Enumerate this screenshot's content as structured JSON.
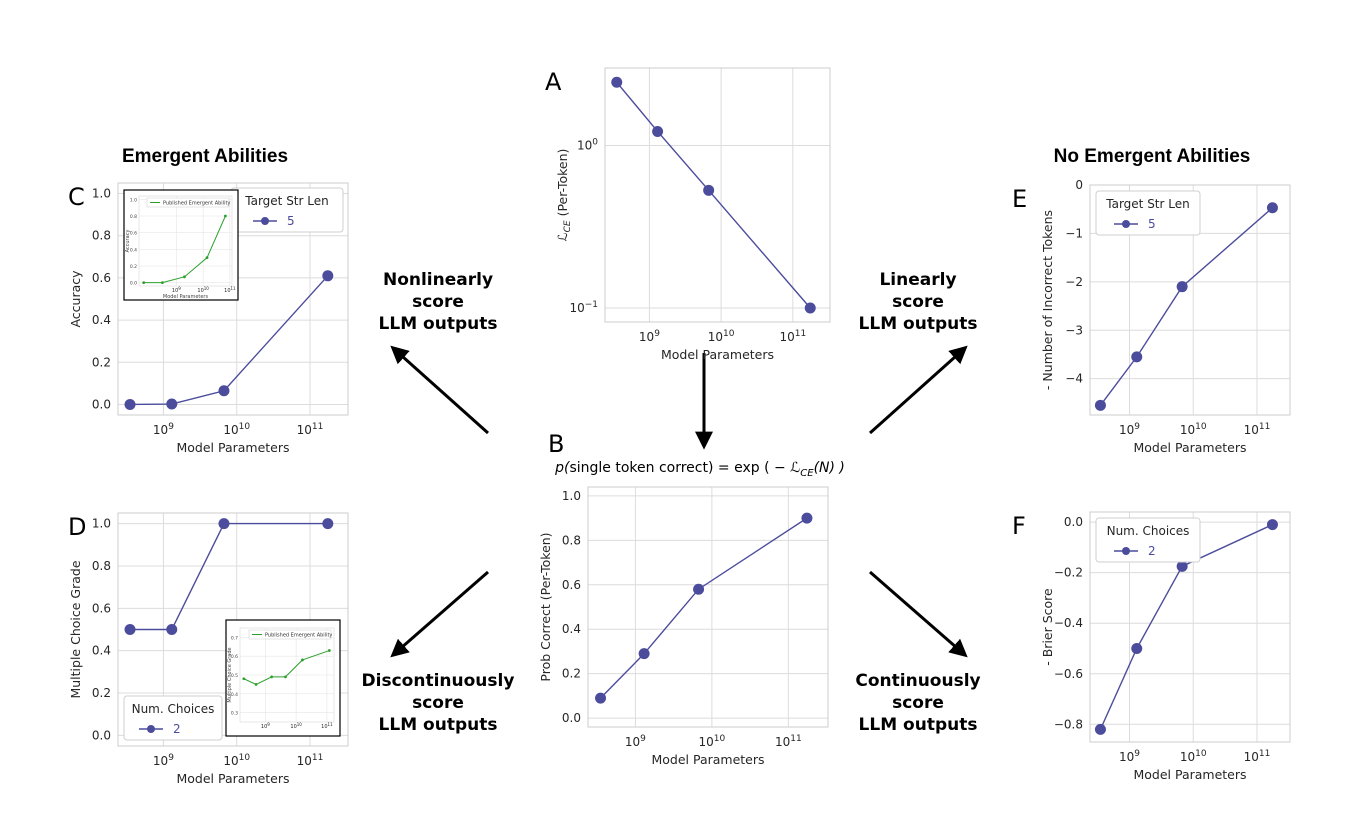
{
  "headings": {
    "left": "Emergent Abilities",
    "right": "No Emergent Abilities"
  },
  "arrows": {
    "nonlinear": [
      "Nonlinearly",
      "score",
      "LLM outputs"
    ],
    "discontinuous": [
      "Discontinuously",
      "score",
      "LLM outputs"
    ],
    "linear": [
      "Linearly",
      "score",
      "LLM outputs"
    ],
    "continuous": [
      "Continuously",
      "score",
      "LLM outputs"
    ]
  },
  "formula": {
    "prefix": "p(",
    "arg": "single token correct",
    "eq": ") = exp ( − ",
    "loss": "ℒ",
    "loss_sub": "CE",
    "suffix": "(N) )"
  },
  "colors": {
    "series": "#4c4c9c",
    "inset": "#2ca02c",
    "grid": "#dcdcdc",
    "frame": "#cccccc"
  },
  "chart_data": [
    {
      "id": "A",
      "type": "line",
      "letter": "A",
      "xlabel": "Model Parameters",
      "ylabel_main": "ℒ",
      "ylabel_sub": "CE",
      "ylabel_tail": " (Per-Token)",
      "x_log": true,
      "y_log": true,
      "xlim": [
        240000000.0,
        330000000000.0
      ],
      "ylim": [
        0.082,
        3.0
      ],
      "x": [
        350000000.0,
        1300000000.0,
        6700000000.0,
        175000000000.0
      ],
      "values": [
        2.45,
        1.22,
        0.53,
        0.1
      ],
      "x_ticks": [
        1000000000.0,
        10000000000.0,
        100000000000.0
      ],
      "x_tick_labels": [
        {
          "base": "10",
          "exp": "9"
        },
        {
          "base": "10",
          "exp": "10"
        },
        {
          "base": "10",
          "exp": "11"
        }
      ],
      "y_ticks": [
        0.1,
        1
      ],
      "y_tick_labels": [
        {
          "base": "10",
          "exp": "−1"
        },
        {
          "base": "10",
          "exp": "0"
        }
      ]
    },
    {
      "id": "B",
      "type": "line",
      "letter": "B",
      "xlabel": "Model Parameters",
      "ylabel": "Prob Correct (Per-Token)",
      "x_log": true,
      "xlim": [
        240000000.0,
        330000000000.0
      ],
      "ylim": [
        -0.04,
        1.04
      ],
      "x": [
        350000000.0,
        1300000000.0,
        6700000000.0,
        175000000000.0
      ],
      "values": [
        0.09,
        0.29,
        0.58,
        0.9
      ],
      "x_ticks": [
        1000000000.0,
        10000000000.0,
        100000000000.0
      ],
      "x_tick_labels": [
        {
          "base": "10",
          "exp": "9"
        },
        {
          "base": "10",
          "exp": "10"
        },
        {
          "base": "10",
          "exp": "11"
        }
      ],
      "y_ticks": [
        0,
        0.2,
        0.4,
        0.6,
        0.8,
        1.0
      ],
      "y_tick_labels": [
        "0.0",
        "0.2",
        "0.4",
        "0.6",
        "0.8",
        "1.0"
      ]
    },
    {
      "id": "C",
      "type": "line",
      "letter": "C",
      "xlabel": "Model Parameters",
      "ylabel": "Accuracy",
      "x_log": true,
      "xlim": [
        240000000.0,
        330000000000.0
      ],
      "ylim": [
        -0.05,
        1.05
      ],
      "x": [
        350000000.0,
        1300000000.0,
        6700000000.0,
        175000000000.0
      ],
      "values": [
        0.0,
        0.002,
        0.065,
        0.61
      ],
      "x_ticks": [
        1000000000.0,
        10000000000.0,
        100000000000.0
      ],
      "x_tick_labels": [
        {
          "base": "10",
          "exp": "9"
        },
        {
          "base": "10",
          "exp": "10"
        },
        {
          "base": "10",
          "exp": "11"
        }
      ],
      "y_ticks": [
        0,
        0.2,
        0.4,
        0.6,
        0.8,
        1.0
      ],
      "y_tick_labels": [
        "0.0",
        "0.2",
        "0.4",
        "0.6",
        "0.8",
        "1.0"
      ],
      "legend": {
        "title": "Target Str Len",
        "label": "5",
        "placement": "top-right"
      },
      "inset": {
        "legend": "Published Emergent Ability",
        "xlabel": "Model Parameters",
        "ylabel": "Accuracy",
        "x": [
          60000000.0,
          300000000.0,
          2000000000.0,
          14000000000.0,
          68000000000.0
        ],
        "values": [
          0.0,
          0.0,
          0.07,
          0.3,
          0.8
        ],
        "x_ticks": [
          1000000000.0,
          10000000000.0,
          100000000000.0
        ],
        "x_tick_labels": [
          {
            "base": "10",
            "exp": "9"
          },
          {
            "base": "10",
            "exp": "10"
          },
          {
            "base": "10",
            "exp": "11"
          }
        ],
        "y_ticks": [
          0,
          0.2,
          0.4,
          0.6,
          0.8,
          1.0
        ],
        "y_tick_labels": [
          "0.0",
          "0.2",
          "0.4",
          "0.6",
          "0.8",
          "1.0"
        ],
        "xlim": [
          40000000.0,
          120000000000.0
        ],
        "ylim": [
          -0.04,
          1.04
        ],
        "placement": "top-left"
      }
    },
    {
      "id": "D",
      "type": "line",
      "letter": "D",
      "xlabel": "Model Parameters",
      "ylabel": "Multiple Choice Grade",
      "x_log": true,
      "xlim": [
        240000000.0,
        330000000000.0
      ],
      "ylim": [
        -0.05,
        1.05
      ],
      "x": [
        350000000.0,
        1300000000.0,
        6700000000.0,
        175000000000.0
      ],
      "values": [
        0.5,
        0.5,
        1.0,
        1.0
      ],
      "x_ticks": [
        1000000000.0,
        10000000000.0,
        100000000000.0
      ],
      "x_tick_labels": [
        {
          "base": "10",
          "exp": "9"
        },
        {
          "base": "10",
          "exp": "10"
        },
        {
          "base": "10",
          "exp": "11"
        }
      ],
      "y_ticks": [
        0,
        0.2,
        0.4,
        0.6,
        0.8,
        1.0
      ],
      "y_tick_labels": [
        "0.0",
        "0.2",
        "0.4",
        "0.6",
        "0.8",
        "1.0"
      ],
      "legend": {
        "title": "Num. Choices",
        "label": "2",
        "placement": "bottom-left"
      },
      "inset": {
        "legend": "Published Emergent Ability",
        "xlabel": "",
        "ylabel": "Multiple Choice Grade",
        "x": [
          200000000.0,
          500000000.0,
          1600000000.0,
          4500000000.0,
          16000000000.0,
          120000000000.0
        ],
        "values": [
          0.48,
          0.45,
          0.49,
          0.49,
          0.58,
          0.63
        ],
        "x_ticks": [
          1000000000.0,
          10000000000.0,
          100000000000.0
        ],
        "x_tick_labels": [
          {
            "base": "10",
            "exp": "9"
          },
          {
            "base": "10",
            "exp": "10"
          },
          {
            "base": "10",
            "exp": "11"
          }
        ],
        "y_ticks": [
          0.3,
          0.4,
          0.5,
          0.6,
          0.7
        ],
        "y_tick_labels": [
          "0.3",
          "0.4",
          "0.5",
          "0.6",
          "0.7"
        ],
        "xlim": [
          150000000.0,
          170000000000.0
        ],
        "ylim": [
          0.25,
          0.75
        ],
        "placement": "bottom-right"
      }
    },
    {
      "id": "E",
      "type": "line",
      "letter": "E",
      "xlabel": "Model Parameters",
      "ylabel": "- Number of Incorrect Tokens",
      "x_log": true,
      "xlim": [
        240000000.0,
        330000000000.0
      ],
      "ylim": [
        -4.75,
        0.0
      ],
      "x": [
        350000000.0,
        1300000000.0,
        6700000000.0,
        175000000000.0
      ],
      "values": [
        -4.55,
        -3.55,
        -2.1,
        -0.47
      ],
      "x_ticks": [
        1000000000.0,
        10000000000.0,
        100000000000.0
      ],
      "x_tick_labels": [
        {
          "base": "10",
          "exp": "9"
        },
        {
          "base": "10",
          "exp": "10"
        },
        {
          "base": "10",
          "exp": "11"
        }
      ],
      "y_ticks": [
        0,
        -1,
        -2,
        -3,
        -4
      ],
      "y_tick_labels": [
        "0",
        "−1",
        "−2",
        "−3",
        "−4"
      ],
      "legend": {
        "title": "Target Str Len",
        "label": "5",
        "placement": "top-left"
      }
    },
    {
      "id": "F",
      "type": "line",
      "letter": "F",
      "xlabel": "Model Parameters",
      "ylabel": "- Brier Score",
      "x_log": true,
      "xlim": [
        240000000.0,
        330000000000.0
      ],
      "ylim": [
        -0.87,
        0.04
      ],
      "x": [
        350000000.0,
        1300000000.0,
        6700000000.0,
        175000000000.0
      ],
      "values": [
        -0.82,
        -0.5,
        -0.175,
        -0.01
      ],
      "x_ticks": [
        1000000000.0,
        10000000000.0,
        100000000000.0
      ],
      "x_tick_labels": [
        {
          "base": "10",
          "exp": "9"
        },
        {
          "base": "10",
          "exp": "10"
        },
        {
          "base": "10",
          "exp": "11"
        }
      ],
      "y_ticks": [
        0,
        -0.2,
        -0.4,
        -0.6,
        -0.8
      ],
      "y_tick_labels": [
        "0.0",
        "−0.2",
        "−0.4",
        "−0.6",
        "−0.8"
      ],
      "legend": {
        "title": "Num. Choices",
        "label": "2",
        "placement": "top-left"
      }
    }
  ]
}
